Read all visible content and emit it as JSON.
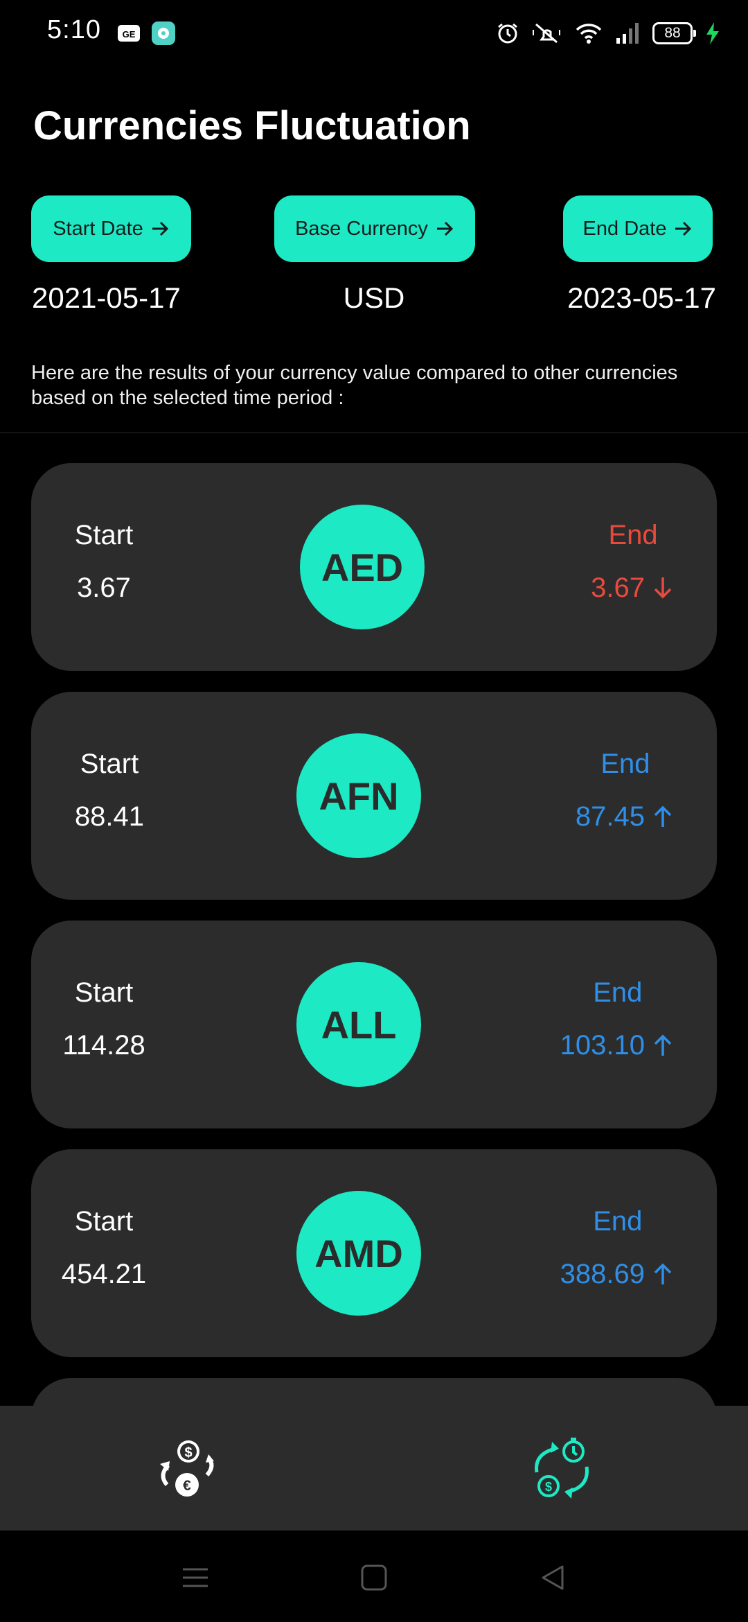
{
  "status_bar": {
    "time": "5:10",
    "battery_level": "88",
    "icons": [
      "gallery-icon",
      "app-icon",
      "alarm-icon",
      "mute-icon",
      "wifi-icon",
      "signal-icon",
      "battery-icon",
      "charging-icon"
    ]
  },
  "header": {
    "title": "Currencies Fluctuation"
  },
  "selectors": {
    "start_date_label": "Start Date",
    "base_currency_label": "Base Currency",
    "end_date_label": "End Date",
    "start_date_value": "2021-05-17",
    "base_currency_value": "USD",
    "end_date_value": "2023-05-17"
  },
  "description": "Here are the results of your currency value compared to other currencies based on the selected time period :",
  "colors": {
    "accent": "#1de9c4",
    "card": "#2c2c2c",
    "down": "#ea4a3d",
    "up": "#2f8fe8"
  },
  "currencies": [
    {
      "code": "AED",
      "start_label": "Start",
      "start": "3.67",
      "end_label": "End",
      "end": "3.67",
      "trend": "down"
    },
    {
      "code": "AFN",
      "start_label": "Start",
      "start": "88.41",
      "end_label": "End",
      "end": "87.45",
      "trend": "up"
    },
    {
      "code": "ALL",
      "start_label": "Start",
      "start": "114.28",
      "end_label": "End",
      "end": "103.10",
      "trend": "up"
    },
    {
      "code": "AMD",
      "start_label": "Start",
      "start": "454.21",
      "end_label": "End",
      "end": "388.69",
      "trend": "up"
    }
  ],
  "bottom_nav": {
    "items": [
      {
        "name": "currency-exchange-icon",
        "active": false
      },
      {
        "name": "currency-fluctuation-icon",
        "active": true
      }
    ]
  },
  "system_nav": [
    "menu-icon",
    "home-icon",
    "back-icon"
  ]
}
